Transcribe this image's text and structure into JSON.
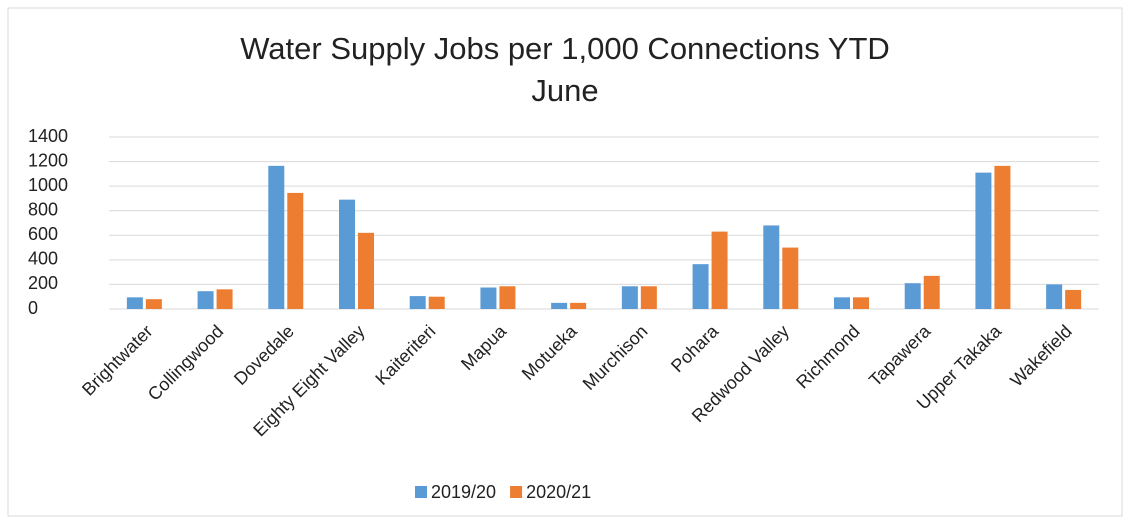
{
  "chart_data": {
    "type": "bar",
    "title": "Water Supply Jobs per 1,000 Connections YTD June",
    "categories": [
      "Brightwater",
      "Collingwood",
      "Dovedale",
      "Eighty Eight Valley",
      "Kaiteriteri",
      "Mapua",
      "Motueka",
      "Murchison",
      "Pohara",
      "Redwood Valley",
      "Richmond",
      "Tapawera",
      "Upper Takaka",
      "Wakefield"
    ],
    "series": [
      {
        "name": "2019/20",
        "color": "#5b9bd5",
        "values": [
          95,
          145,
          1165,
          890,
          105,
          175,
          50,
          185,
          365,
          680,
          95,
          210,
          1110,
          200
        ]
      },
      {
        "name": "2020/21",
        "color": "#ed7d31",
        "values": [
          80,
          160,
          945,
          620,
          100,
          185,
          50,
          185,
          630,
          500,
          95,
          270,
          1165,
          155
        ]
      }
    ],
    "ylim": [
      0,
      1400
    ],
    "yticks": [
      0,
      200,
      400,
      600,
      800,
      1000,
      1200,
      1400
    ],
    "grid": true,
    "legend": "bottom"
  }
}
